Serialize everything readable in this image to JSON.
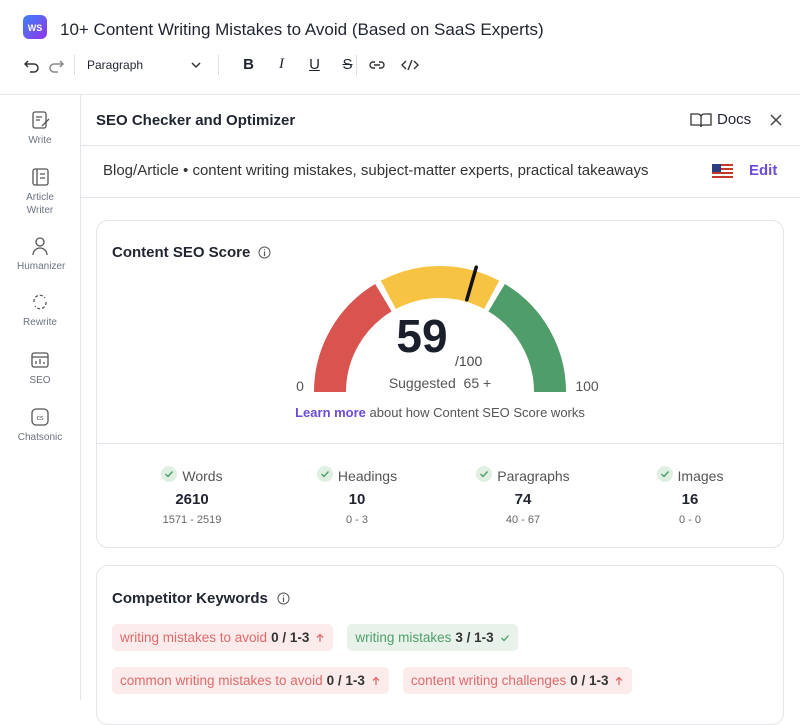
{
  "header": {
    "logo": "WS",
    "title": "10+ Content Writing Mistakes to Avoid (Based on SaaS Experts)",
    "paragraph_select": "Paragraph",
    "format_buttons": [
      "B",
      "I",
      "U",
      "S"
    ]
  },
  "sidebar": [
    "Write",
    "Article Writer",
    "Humanizer",
    "Rewrite",
    "SEO",
    "Chatsonic"
  ],
  "panel": {
    "title": "SEO Checker and Optimizer",
    "docs": "Docs",
    "context": "Blog/Article • content writing mistakes, subject-matter experts, practical takeaways",
    "edit": "Edit"
  },
  "score_card": {
    "title": "Content SEO Score",
    "score": 59,
    "out_of": "/100",
    "suggested_label": "Suggested",
    "suggested": "65 +",
    "gauge_min": 0,
    "gauge_max": 100,
    "learn_more": "Learn more",
    "learn_more_rest": "about how Content SEO Score works"
  },
  "stats": [
    {
      "label": "Words",
      "value": 2610,
      "range": "1571 - 2519"
    },
    {
      "label": "Headings",
      "value": 10,
      "range": "0 - 3"
    },
    {
      "label": "Paragraphs",
      "value": 74,
      "range": "40 - 67"
    },
    {
      "label": "Images",
      "value": 16,
      "range": "0 - 0"
    }
  ],
  "competitor": {
    "title": "Competitor Keywords",
    "keywords": [
      {
        "text": "writing mistakes to avoid",
        "count": "0 / 1-3",
        "color": "#e06a6a"
      },
      {
        "text": "writing mistakes",
        "count": "3 / 1-3",
        "color": "#4f9d69"
      },
      {
        "text": "common writing mistakes to avoid",
        "count": "0 / 1-3",
        "color": "#e06a6a"
      },
      {
        "text": "content writing challenges",
        "count": "0 / 1-3",
        "color": "#e06a6a"
      }
    ]
  }
}
